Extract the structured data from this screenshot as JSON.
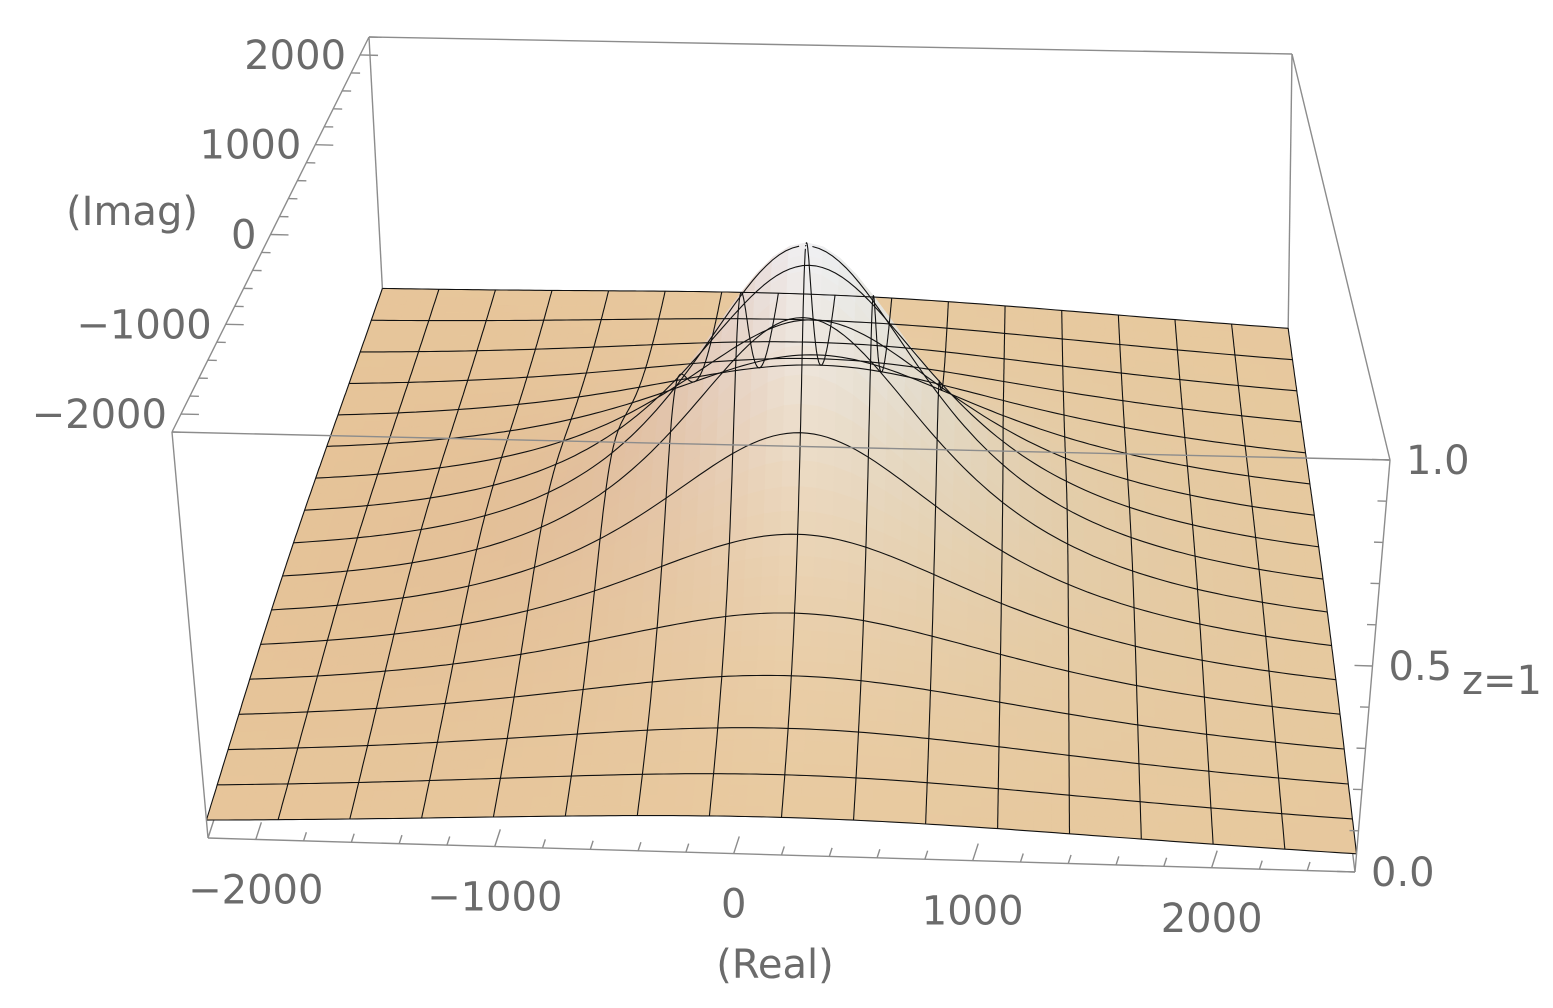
{
  "chart_data": {
    "type": "surface3d",
    "plot_label": "z=1",
    "x_axis": {
      "label": "(Real)",
      "range": [
        -2200,
        2600
      ],
      "ticks": [
        -2000,
        -1000,
        0,
        1000,
        2000
      ],
      "tick_labels": [
        "−2000",
        "−1000",
        "0",
        "1000",
        "2000"
      ]
    },
    "y_axis": {
      "label": "(Imag)",
      "range": [
        -2200,
        2200
      ],
      "ticks": [
        -2000,
        -1000,
        0,
        1000,
        2000
      ],
      "tick_labels": [
        "−2000",
        "−1000",
        "0",
        "1000",
        "2000"
      ]
    },
    "z_axis": {
      "label": "",
      "range": [
        0,
        1
      ],
      "ticks": [
        0.0,
        0.5,
        1.0
      ],
      "tick_labels": [
        "0.0",
        "0.5",
        "1.0"
      ]
    },
    "surface": {
      "function": "1 / (1 + ((x - 200)^2 + y^2) / 700^2)",
      "clipped_above_z": 1.0,
      "mesh_lines": 15
    },
    "colors": {
      "surface_low": "#e8c89c",
      "surface_left": "#a03a30",
      "surface_right": "#a8dcf0",
      "clip_cap": "#cccccc",
      "mesh": "#111111",
      "frame": "#8c8c8c",
      "text": "#6b6b6b"
    },
    "grid": false
  }
}
